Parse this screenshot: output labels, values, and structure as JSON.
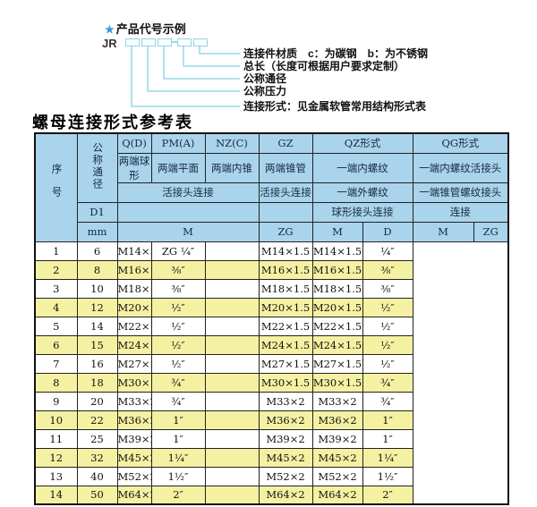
{
  "colors": {
    "header_bg": "#a9d4ec",
    "highlight_row": "#f5f1a3",
    "table_border": "#1a1a1a",
    "accent_star": "#2b9fd8",
    "leader_line": "#82d0e6"
  },
  "diagram": {
    "star": "★",
    "title": "产品代号示例",
    "prefix": "JR",
    "labels": [
      "连接件材质　c：为碳钢　b：为不锈钢",
      "总长（长度可根据用户要求定制）",
      "公称通径",
      "公称压力",
      "连接形式：见金属软管常用结构形式表"
    ]
  },
  "table": {
    "title": "螺母连接形式参考表",
    "header": {
      "seq": "序号",
      "dn": "公称通径",
      "d1": "D1",
      "mm": "mm",
      "live_joint": "活接头连接",
      "m_unit": "M",
      "qd_code": "Q(D)",
      "qd_desc": "两端球形",
      "pm_code": "PM(A)",
      "pm_desc": "两端平面",
      "nz_code": "NZ(C)",
      "nz_desc": "两端内锥",
      "gz_code": "GZ",
      "gz_desc": "两端锥管",
      "gz_conn": "活接头连接",
      "gz_unit": "ZG",
      "qz_code": "QZ形式",
      "qz_desc1": "一端内螺纹",
      "qz_desc2": "一端外螺纹",
      "qz_conn": "球形接头连接",
      "qz_unit1": "M",
      "qz_unit2": "D",
      "qg_code": "QG形式",
      "qg_desc1": "一端内螺纹活接头",
      "qg_desc2": "一端锥管螺纹接头",
      "qg_conn": "连接",
      "qg_unit1": "M",
      "qg_unit2": "ZG"
    },
    "row_fields": [
      "seq",
      "dn",
      "m",
      "zg",
      "qz_m",
      "qz_d",
      "qg_m",
      "qg_zg"
    ],
    "rows": [
      {
        "seq": "1",
        "dn": "6",
        "m": "M14×1.5",
        "zg": "ZG ¼″",
        "qz_m": "",
        "qz_d": "M14×1.5",
        "qg_m": "M14×1.5",
        "qg_zg": "¼″",
        "hl": false
      },
      {
        "seq": "2",
        "dn": "8",
        "m": "M16×1.5",
        "zg": "⅜″",
        "qz_m": "",
        "qz_d": "M16×1.5",
        "qg_m": "M16×1.5",
        "qg_zg": "⅜″",
        "hl": true
      },
      {
        "seq": "3",
        "dn": "10",
        "m": "M18×1.5",
        "zg": "⅜″",
        "qz_m": "",
        "qz_d": "M18×1.5",
        "qg_m": "M18×1.5",
        "qg_zg": "⅜″",
        "hl": false
      },
      {
        "seq": "4",
        "dn": "12",
        "m": "M20×1.5",
        "zg": "½″",
        "qz_m": "",
        "qz_d": "M20×1.5",
        "qg_m": "M20×1.5",
        "qg_zg": "½″",
        "hl": true
      },
      {
        "seq": "5",
        "dn": "14",
        "m": "M22×1.5",
        "zg": "½″",
        "qz_m": "",
        "qz_d": "M22×1.5",
        "qg_m": "M22×1.5",
        "qg_zg": "½″",
        "hl": false
      },
      {
        "seq": "6",
        "dn": "15",
        "m": "M24×1.5",
        "zg": "½″",
        "qz_m": "",
        "qz_d": "M24×1.5",
        "qg_m": "M24×1.5",
        "qg_zg": "½″",
        "hl": true
      },
      {
        "seq": "7",
        "dn": "16",
        "m": "M27×1.5",
        "zg": "½″",
        "qz_m": "",
        "qz_d": "M27×1.5",
        "qg_m": "M27×1.5",
        "qg_zg": "½″",
        "hl": false
      },
      {
        "seq": "8",
        "dn": "18",
        "m": "M30×1.5",
        "zg": "¾″",
        "qz_m": "",
        "qz_d": "M30×1.5",
        "qg_m": "M30×1.5",
        "qg_zg": "¾″",
        "hl": true
      },
      {
        "seq": "9",
        "dn": "20",
        "m": "M33×2",
        "zg": "¾″",
        "qz_m": "",
        "qz_d": "M33×2",
        "qg_m": "M33×2",
        "qg_zg": "¾″",
        "hl": false
      },
      {
        "seq": "10",
        "dn": "22",
        "m": "M36×2",
        "zg": "1″",
        "qz_m": "",
        "qz_d": "M36×2",
        "qg_m": "M36×2",
        "qg_zg": "1″",
        "hl": true
      },
      {
        "seq": "11",
        "dn": "25",
        "m": "M39×2",
        "zg": "1″",
        "qz_m": "",
        "qz_d": "M39×2",
        "qg_m": "M39×2",
        "qg_zg": "1″",
        "hl": false
      },
      {
        "seq": "12",
        "dn": "32",
        "m": "M45×2",
        "zg": "1¼″",
        "qz_m": "",
        "qz_d": "M45×2",
        "qg_m": "M45×2",
        "qg_zg": "1¼″",
        "hl": true
      },
      {
        "seq": "13",
        "dn": "40",
        "m": "M52×2",
        "zg": "1½″",
        "qz_m": "",
        "qz_d": "M52×2",
        "qg_m": "M52×2",
        "qg_zg": "1½″",
        "hl": false
      },
      {
        "seq": "14",
        "dn": "50",
        "m": "M64×2",
        "zg": "2″",
        "qz_m": "",
        "qz_d": "M64×2",
        "qg_m": "M64×2",
        "qg_zg": "2″",
        "hl": true
      }
    ]
  }
}
